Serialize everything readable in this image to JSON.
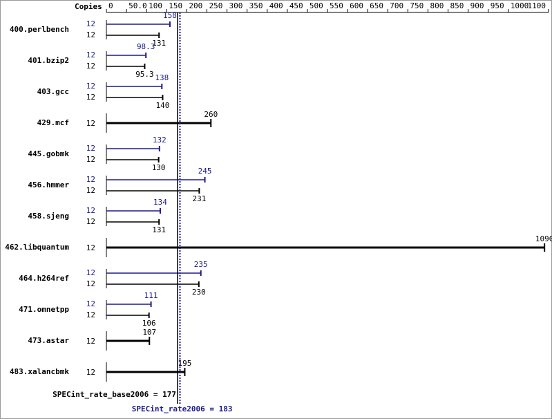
{
  "chart_data": {
    "type": "spec-bar",
    "copies_header": "Copies",
    "xlim": [
      0,
      1100
    ],
    "xticks": [
      0,
      {
        "value": 50,
        "label": "50.0"
      },
      100,
      150,
      200,
      250,
      300,
      350,
      400,
      450,
      500,
      550,
      600,
      650,
      700,
      750,
      800,
      850,
      900,
      950,
      1000,
      1100
    ],
    "categories": [
      "400.perlbench",
      "401.bzip2",
      "403.gcc",
      "429.mcf",
      "445.gobmk",
      "456.hmmer",
      "458.sjeng",
      "462.libquantum",
      "464.h264ref",
      "471.omnetpp",
      "473.astar",
      "483.xalancbmk"
    ],
    "series": [
      {
        "name": "SPECint_rate2006",
        "color": "#1a1a8c",
        "copies": [
          "12",
          "12",
          "12",
          null,
          "12",
          "12",
          "12",
          null,
          "12",
          "12",
          null,
          null
        ],
        "values": [
          158,
          98.3,
          138,
          null,
          132,
          245,
          134,
          null,
          235,
          111,
          null,
          null
        ]
      },
      {
        "name": "SPECint_rate_base2006",
        "color": "#000000",
        "copies": [
          "12",
          "12",
          "12",
          "12",
          "12",
          "12",
          "12",
          "12",
          "12",
          "12",
          "12",
          "12"
        ],
        "values": [
          131,
          95.3,
          140,
          260,
          130,
          231,
          131,
          1090,
          230,
          106,
          107,
          195
        ]
      }
    ],
    "reference_lines": [
      {
        "label": "SPECint_rate_base2006 = 177",
        "value": 177,
        "color": "#000000",
        "style": "solid"
      },
      {
        "label": "SPECint_rate2006 = 183",
        "value": 183,
        "color": "#1a1a8c",
        "style": "dotted"
      }
    ]
  }
}
